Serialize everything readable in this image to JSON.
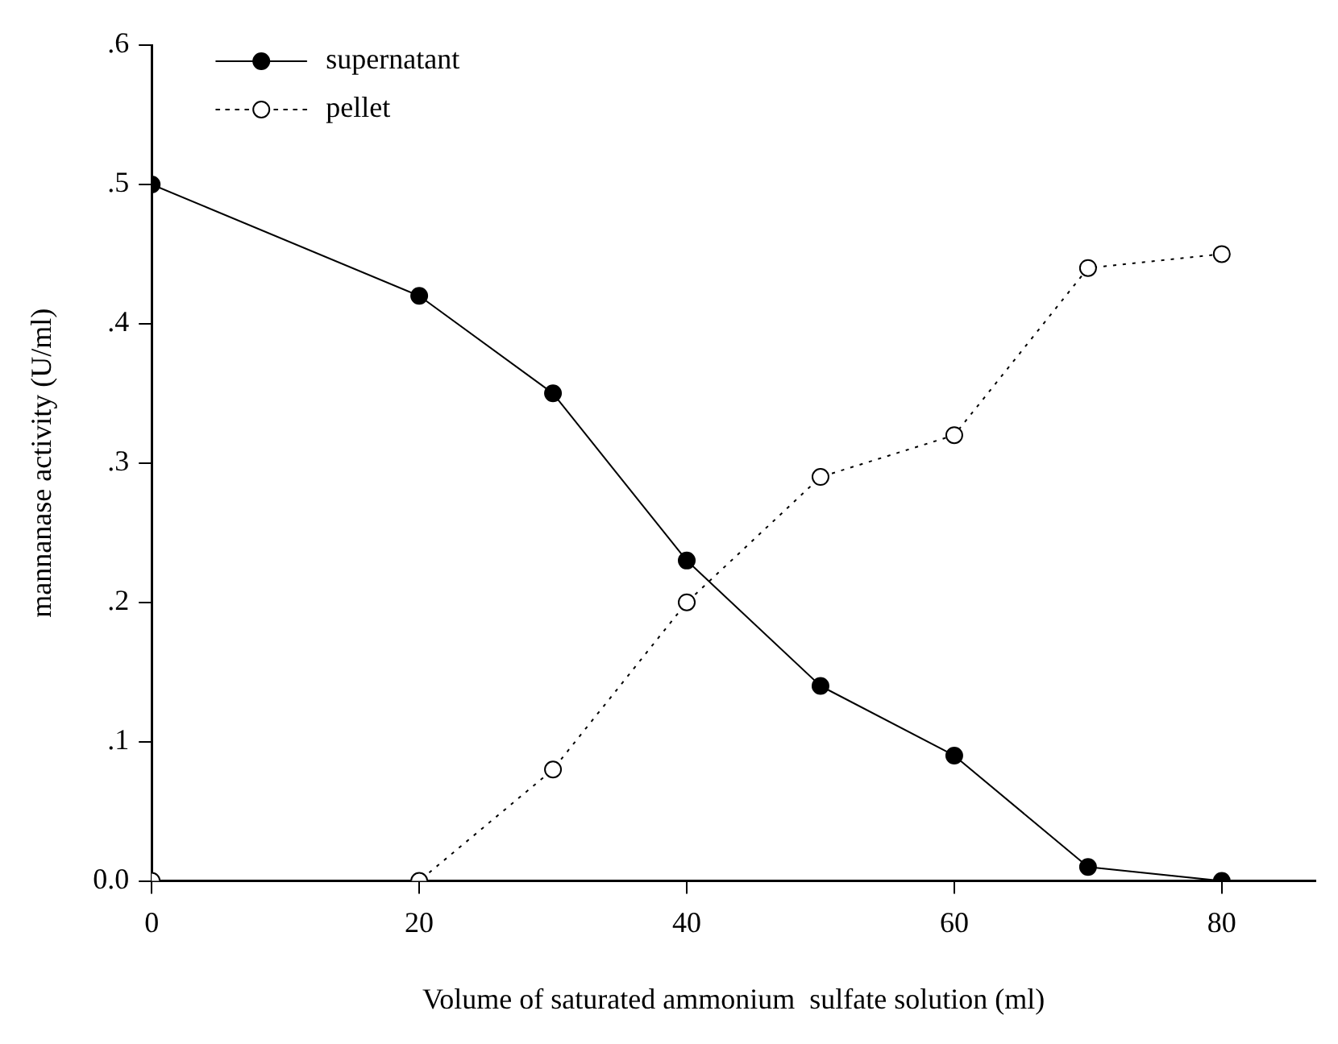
{
  "chart_data": {
    "type": "line",
    "xlabel": "Volume of saturated ammonium  sulfate solution (ml)",
    "ylabel": "mannanase activity (U/ml)",
    "x": [
      0,
      20,
      30,
      40,
      50,
      60,
      70,
      80
    ],
    "series": [
      {
        "name": "supernatant",
        "color": "#000000",
        "line_style": "solid",
        "values": [
          0.5,
          0.42,
          0.35,
          0.23,
          0.14,
          0.09,
          0.01,
          0
        ]
      },
      {
        "name": "pellet",
        "color": "#000000",
        "line_style": "dotted",
        "values": [
          0,
          0,
          0.08,
          0.2,
          0.29,
          0.32,
          0.44,
          0.45
        ]
      }
    ],
    "xlim": [
      0,
      87
    ],
    "xticks": [
      0,
      20,
      40,
      60,
      80
    ],
    "ylim": [
      0,
      0.6
    ],
    "yticks": [
      {
        "value": 0,
        "label": "0.0"
      },
      {
        "value": 0.1,
        "label": ".1"
      },
      {
        "value": 0.2,
        "label": ".2"
      },
      {
        "value": 0.3,
        "label": ".3"
      },
      {
        "value": 0.4,
        "label": ".4"
      },
      {
        "value": 0.5,
        "label": ".5"
      },
      {
        "value": 0.6,
        "label": ".6"
      }
    ],
    "grid": false,
    "legend": "top left",
    "marker": "circle"
  }
}
